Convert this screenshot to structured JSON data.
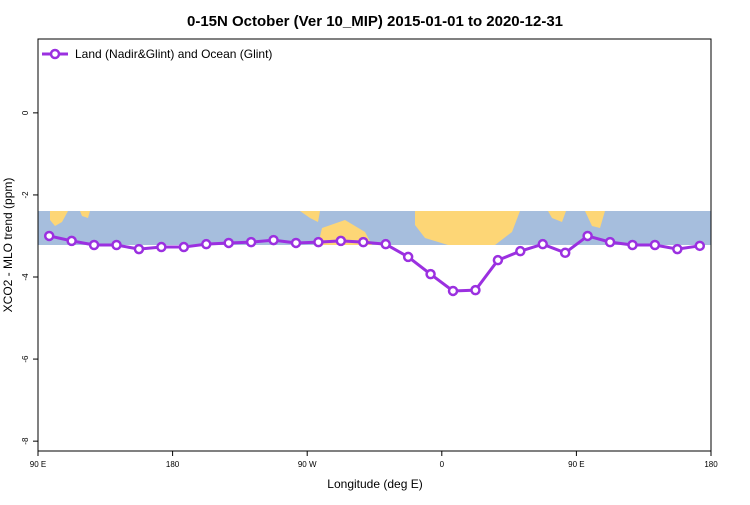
{
  "chart_data": {
    "type": "line",
    "title": "0-15N October (Ver 10_MIP)   2015-01-01 to 2020-12-31",
    "x_label": "Longitude (deg E)",
    "y_label": "XCO2 - MLO trend (ppm)",
    "x": [
      97.5,
      112.5,
      127.5,
      142.5,
      157.5,
      172.5,
      187.5,
      202.5,
      217.5,
      232.5,
      247.5,
      262.5,
      277.5,
      292.5,
      307.5,
      322.5,
      337.5,
      352.5,
      367.5,
      382.5,
      397.5,
      412.5,
      427.5,
      442.5,
      457.5,
      472.5,
      487.5,
      502.5,
      517.5,
      532.5
    ],
    "series": [
      {
        "name": "Land (Nadir&Glint) and Ocean (Glint)",
        "color": "#9b30e0",
        "values": [
          -3.0,
          -3.12,
          -3.22,
          -3.22,
          -3.32,
          -3.27,
          -3.27,
          -3.2,
          -3.17,
          -3.15,
          -3.1,
          -3.17,
          -3.15,
          -3.12,
          -3.15,
          -3.2,
          -3.51,
          -3.93,
          -4.34,
          -4.32,
          -3.59,
          -3.37,
          -3.2,
          -3.41,
          -3.0,
          -3.15,
          -3.22,
          -3.22,
          -3.32,
          -3.24
        ]
      }
    ],
    "xlim": [
      90,
      540
    ],
    "xticks": [
      {
        "value": 90,
        "label": "90 E"
      },
      {
        "value": 180,
        "label": "180"
      },
      {
        "value": 270,
        "label": "90 W"
      },
      {
        "value": 360,
        "label": "0"
      },
      {
        "value": 450,
        "label": "90 E"
      },
      {
        "value": 540,
        "label": "180"
      }
    ],
    "ylim": [
      -8.24,
      1.8
    ],
    "yticks": [
      0,
      -2,
      -4,
      -6,
      -8
    ],
    "legend": "top-left"
  }
}
